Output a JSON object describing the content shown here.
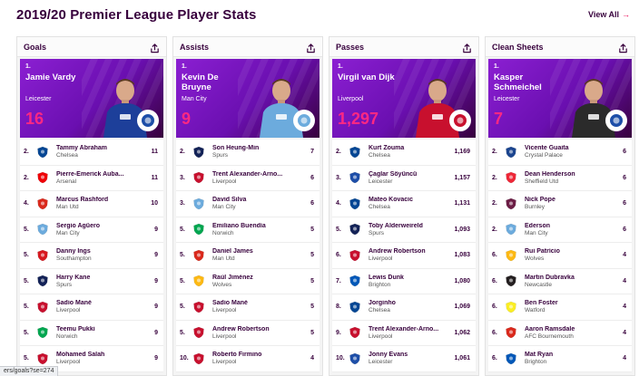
{
  "page": {
    "title": "2019/20 Premier League Player Stats",
    "view_all": "View All"
  },
  "colors": {
    "accent": "#e90052",
    "brand": "#37003c",
    "hero_bg": "#8b1fd2",
    "hero_value": "#ff2882"
  },
  "icons": {
    "share": "share-icon",
    "arrow": "arrow-right-icon"
  },
  "columns": [
    {
      "title": "Goals",
      "top": {
        "rank": "1.",
        "name": "Jamie Vardy",
        "club": "Leicester",
        "value": "16",
        "kit": "#1d3f9a",
        "badge": "#1d4ea8"
      },
      "rows": [
        {
          "pos": "2.",
          "name": "Tammy Abraham",
          "club": "Chelsea",
          "value": "11",
          "crest": "#034694"
        },
        {
          "pos": "2.",
          "name": "Pierre-Emerick Auba...",
          "club": "Arsenal",
          "value": "11",
          "crest": "#ef0107"
        },
        {
          "pos": "4.",
          "name": "Marcus Rashford",
          "club": "Man Utd",
          "value": "10",
          "crest": "#da291c"
        },
        {
          "pos": "5.",
          "name": "Sergio Agüero",
          "club": "Man City",
          "value": "9",
          "crest": "#6cabdd"
        },
        {
          "pos": "5.",
          "name": "Danny Ings",
          "club": "Southampton",
          "value": "9",
          "crest": "#d71920"
        },
        {
          "pos": "5.",
          "name": "Harry Kane",
          "club": "Spurs",
          "value": "9",
          "crest": "#132257"
        },
        {
          "pos": "5.",
          "name": "Sadio Mané",
          "club": "Liverpool",
          "value": "9",
          "crest": "#c8102e"
        },
        {
          "pos": "5.",
          "name": "Teemu Pukki",
          "club": "Norwich",
          "value": "9",
          "crest": "#00a650"
        },
        {
          "pos": "5.",
          "name": "Mohamed Salah",
          "club": "Liverpool",
          "value": "9",
          "crest": "#c8102e"
        }
      ]
    },
    {
      "title": "Assists",
      "top": {
        "rank": "1.",
        "name": "Kevin De Bruyne",
        "club": "Man City",
        "value": "9",
        "kit": "#6cabdd",
        "badge": "#6cabdd"
      },
      "rows": [
        {
          "pos": "2.",
          "name": "Son Heung-Min",
          "club": "Spurs",
          "value": "7",
          "crest": "#132257"
        },
        {
          "pos": "3.",
          "name": "Trent Alexander-Arno...",
          "club": "Liverpool",
          "value": "6",
          "crest": "#c8102e"
        },
        {
          "pos": "3.",
          "name": "David Silva",
          "club": "Man City",
          "value": "6",
          "crest": "#6cabdd"
        },
        {
          "pos": "5.",
          "name": "Emiliano Buendía",
          "club": "Norwich",
          "value": "5",
          "crest": "#00a650"
        },
        {
          "pos": "5.",
          "name": "Daniel James",
          "club": "Man Utd",
          "value": "5",
          "crest": "#da291c"
        },
        {
          "pos": "5.",
          "name": "Raúl Jiménez",
          "club": "Wolves",
          "value": "5",
          "crest": "#fdb913"
        },
        {
          "pos": "5.",
          "name": "Sadio Mané",
          "club": "Liverpool",
          "value": "5",
          "crest": "#c8102e"
        },
        {
          "pos": "5.",
          "name": "Andrew Robertson",
          "club": "Liverpool",
          "value": "5",
          "crest": "#c8102e"
        },
        {
          "pos": "10.",
          "name": "Roberto Firmino",
          "club": "Liverpool",
          "value": "4",
          "crest": "#c8102e"
        }
      ]
    },
    {
      "title": "Passes",
      "top": {
        "rank": "1.",
        "name": "Virgil van Dijk",
        "club": "Liverpool",
        "value": "1,297",
        "kit": "#c8102e",
        "badge": "#c8102e"
      },
      "rows": [
        {
          "pos": "2.",
          "name": "Kurt Zouma",
          "club": "Chelsea",
          "value": "1,169",
          "crest": "#034694"
        },
        {
          "pos": "3.",
          "name": "Çaglar Söyüncü",
          "club": "Leicester",
          "value": "1,157",
          "crest": "#1d4ea8"
        },
        {
          "pos": "4.",
          "name": "Mateo Kovacic",
          "club": "Chelsea",
          "value": "1,131",
          "crest": "#034694"
        },
        {
          "pos": "5.",
          "name": "Toby Alderweireld",
          "club": "Spurs",
          "value": "1,093",
          "crest": "#132257"
        },
        {
          "pos": "6.",
          "name": "Andrew Robertson",
          "club": "Liverpool",
          "value": "1,083",
          "crest": "#c8102e"
        },
        {
          "pos": "7.",
          "name": "Lewis Dunk",
          "club": "Brighton",
          "value": "1,080",
          "crest": "#0057b8"
        },
        {
          "pos": "8.",
          "name": "Jorginho",
          "club": "Chelsea",
          "value": "1,069",
          "crest": "#034694"
        },
        {
          "pos": "9.",
          "name": "Trent Alexander-Arno...",
          "club": "Liverpool",
          "value": "1,062",
          "crest": "#c8102e"
        },
        {
          "pos": "10.",
          "name": "Jonny Evans",
          "club": "Leicester",
          "value": "1,061",
          "crest": "#1d4ea8"
        }
      ]
    },
    {
      "title": "Clean Sheets",
      "top": {
        "rank": "1.",
        "name": "Kasper Schmeichel",
        "club": "Leicester",
        "value": "7",
        "kit": "#2b2b2b",
        "badge": "#1d4ea8"
      },
      "rows": [
        {
          "pos": "2.",
          "name": "Vicente Guaita",
          "club": "Crystal Palace",
          "value": "6",
          "crest": "#1b458f"
        },
        {
          "pos": "2.",
          "name": "Dean Henderson",
          "club": "Sheffield Utd",
          "value": "6",
          "crest": "#ee2737"
        },
        {
          "pos": "2.",
          "name": "Nick Pope",
          "club": "Burnley",
          "value": "6",
          "crest": "#6c1d45"
        },
        {
          "pos": "2.",
          "name": "Ederson",
          "club": "Man City",
          "value": "6",
          "crest": "#6cabdd"
        },
        {
          "pos": "6.",
          "name": "Rui Patrício",
          "club": "Wolves",
          "value": "4",
          "crest": "#fdb913"
        },
        {
          "pos": "6.",
          "name": "Martin Dubravka",
          "club": "Newcastle",
          "value": "4",
          "crest": "#241f20"
        },
        {
          "pos": "6.",
          "name": "Ben Foster",
          "club": "Watford",
          "value": "4",
          "crest": "#fbee23"
        },
        {
          "pos": "6.",
          "name": "Aaron Ramsdale",
          "club": "AFC Bournemouth",
          "value": "4",
          "crest": "#da291c"
        },
        {
          "pos": "6.",
          "name": "Mat Ryan",
          "club": "Brighton",
          "value": "4",
          "crest": "#0057b8"
        }
      ]
    }
  ],
  "status_url": "ers/goals?se=274"
}
